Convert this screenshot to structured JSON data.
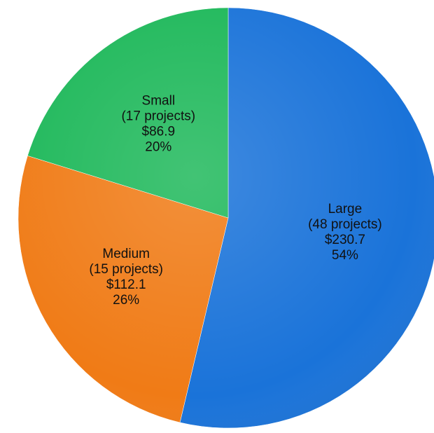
{
  "chart_data": {
    "type": "pie",
    "title": "",
    "start_angle_deg": 0,
    "direction": "clockwise",
    "slices": [
      {
        "name": "Large",
        "projects_label": "(48 projects)",
        "value": 230.7,
        "value_label": "$230.7",
        "percent": 54,
        "percent_label": "54%",
        "color": "#1a73d9"
      },
      {
        "name": "Medium",
        "projects_label": "(15 projects)",
        "value": 112.1,
        "value_label": "$112.1",
        "percent": 26,
        "percent_label": "26%",
        "color": "#f07b16"
      },
      {
        "name": "Small",
        "projects_label": "(17 projects)",
        "value": 86.9,
        "value_label": "$86.9",
        "percent": 20,
        "percent_label": "20%",
        "color": "#1eb85a"
      }
    ]
  }
}
